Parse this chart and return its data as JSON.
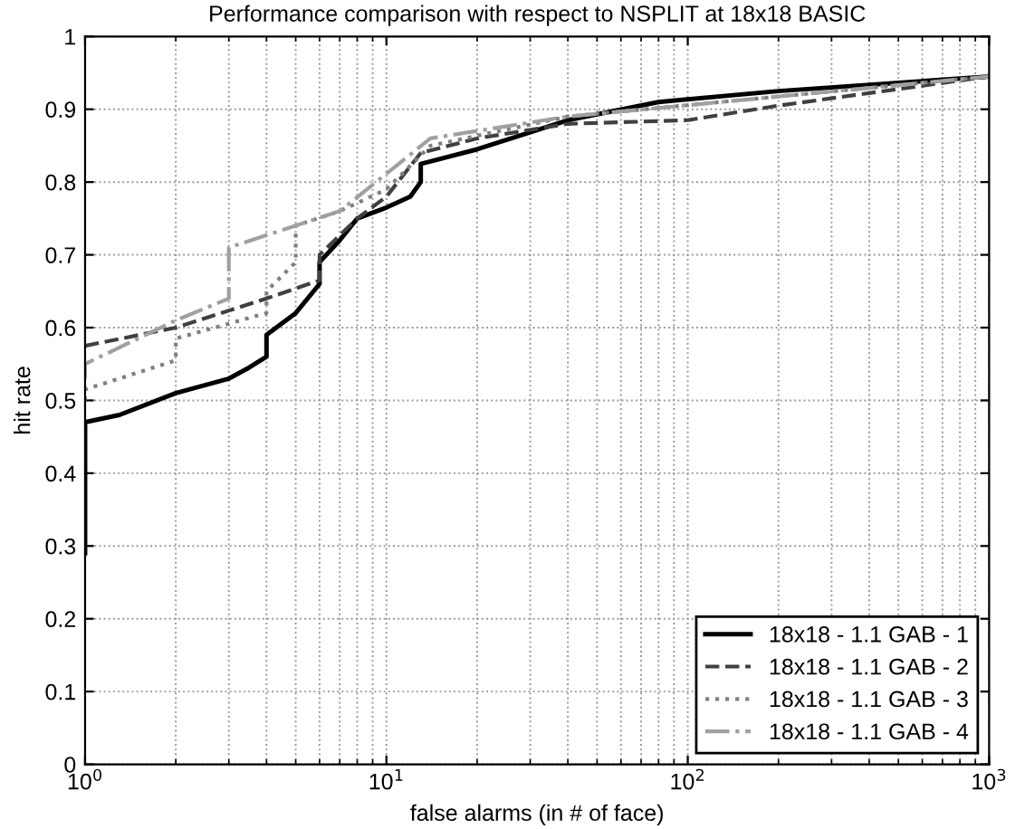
{
  "chart_data": {
    "type": "line",
    "title": "Performance comparison with respect to NSPLIT at 18x18 BASIC",
    "xlabel": "false alarms (in # of face)",
    "ylabel": "hit rate",
    "log": "x",
    "xlim": [
      1,
      1000
    ],
    "xticks": [
      {
        "value": 1,
        "label": "10$^{0}$"
      },
      {
        "value": 10,
        "label": "10$^{1}$"
      },
      {
        "value": 100,
        "label": "10$^{2}$"
      },
      {
        "value": 1000,
        "label": "10$^{3}$"
      }
    ],
    "ylim": [
      0,
      1
    ],
    "yticks": [
      0,
      0.1,
      0.2,
      0.3,
      0.4,
      0.5,
      0.6,
      0.7,
      0.8,
      0.9,
      1
    ],
    "grid": true,
    "legend": "bottom right",
    "marker": "none",
    "series": [
      {
        "name": "18x18 - 1.1 GAB - 1",
        "color": "#000000",
        "line_style": "solid",
        "x": [
          1,
          1,
          1.3,
          2,
          3,
          3.5,
          4,
          4,
          5,
          6,
          6,
          7,
          8,
          10,
          12,
          13,
          13,
          20,
          40,
          80,
          200,
          1000
        ],
        "values": [
          0.29,
          0.47,
          0.48,
          0.51,
          0.53,
          0.545,
          0.56,
          0.59,
          0.62,
          0.66,
          0.69,
          0.72,
          0.75,
          0.765,
          0.78,
          0.8,
          0.825,
          0.845,
          0.885,
          0.91,
          0.925,
          0.945
        ]
      },
      {
        "name": "18x18 - 1.1 GAB - 2",
        "color": "#404040",
        "line_style": "dashed",
        "x": [
          1,
          2,
          4,
          6,
          6,
          8,
          10,
          13,
          20,
          40,
          100,
          200,
          1000
        ],
        "values": [
          0.575,
          0.6,
          0.64,
          0.665,
          0.7,
          0.75,
          0.78,
          0.84,
          0.86,
          0.88,
          0.885,
          0.905,
          0.945
        ]
      },
      {
        "name": "18x18 - 1.1 GAB - 3",
        "color": "#808080",
        "line_style": "dotted",
        "x": [
          1,
          1,
          2,
          2,
          4,
          4,
          5,
          5,
          7,
          10,
          14,
          40,
          1000
        ],
        "values": [
          0.5,
          0.515,
          0.555,
          0.585,
          0.62,
          0.65,
          0.69,
          0.74,
          0.76,
          0.79,
          0.85,
          0.89,
          0.945
        ]
      },
      {
        "name": "18x18 - 1.1 GAB - 4",
        "color": "#a0a0a0",
        "line_style": "dashdot",
        "x": [
          1,
          1,
          2,
          3,
          3,
          7,
          14,
          40,
          1000
        ],
        "values": [
          0.53,
          0.55,
          0.61,
          0.64,
          0.71,
          0.76,
          0.86,
          0.89,
          0.945
        ]
      }
    ]
  }
}
